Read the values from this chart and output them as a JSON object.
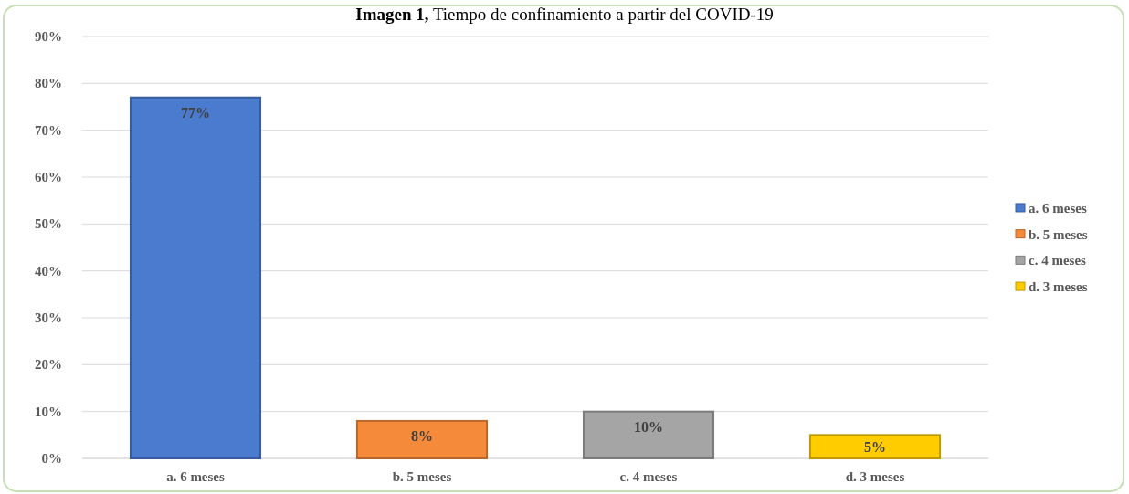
{
  "chart_data": {
    "type": "bar",
    "title": "Imagen 1, Tiempo de confinamiento a partir del COVID-19",
    "categories": [
      "a. 6 meses",
      "b. 5 meses",
      "c. 4 meses",
      "d. 3 meses"
    ],
    "series": [
      {
        "name": "a. 6 meses",
        "color": "#4a7bcf",
        "values": [
          77,
          null,
          null,
          null
        ],
        "value_labels": [
          "77%",
          null,
          null,
          null
        ]
      },
      {
        "name": "b. 5 meses",
        "color": "#f58a3a",
        "values": [
          null,
          8,
          null,
          null
        ],
        "value_labels": [
          null,
          "8%",
          null,
          null
        ]
      },
      {
        "name": "c. 4 meses",
        "color": "#a5a5a5",
        "values": [
          null,
          null,
          10,
          null
        ],
        "value_labels": [
          null,
          null,
          "10%",
          null
        ]
      },
      {
        "name": "d. 3 meses",
        "color": "#ffcc00",
        "values": [
          null,
          null,
          null,
          5
        ],
        "value_labels": [
          null,
          null,
          null,
          "5%"
        ]
      }
    ],
    "stacked": true,
    "ylim": [
      0,
      90
    ],
    "yticks": [
      {
        "value": 0,
        "label": "0%"
      },
      {
        "value": 10,
        "label": "10%"
      },
      {
        "value": 20,
        "label": "20%"
      },
      {
        "value": 30,
        "label": "30%"
      },
      {
        "value": 40,
        "label": "40%"
      },
      {
        "value": 50,
        "label": "50%"
      },
      {
        "value": 60,
        "label": "60%"
      },
      {
        "value": 70,
        "label": "70%"
      },
      {
        "value": 80,
        "label": "80%"
      },
      {
        "value": 90,
        "label": "90%"
      }
    ],
    "grid": "y",
    "legend": "right"
  }
}
